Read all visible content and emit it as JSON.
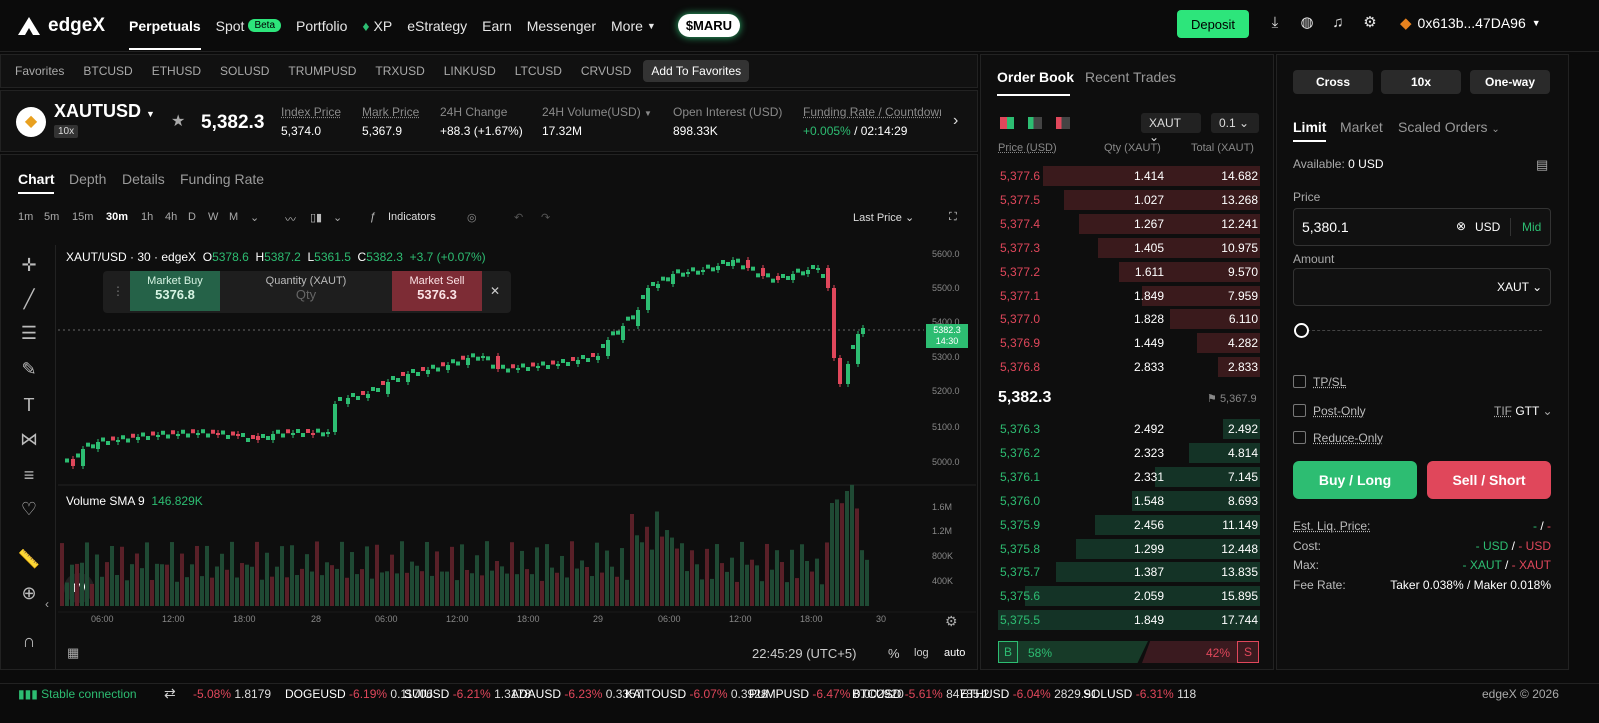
{
  "nav": {
    "brand": "edgeX",
    "items": [
      "Perpetuals",
      "Spot",
      "Portfolio",
      "XP",
      "eStrategy",
      "Earn",
      "Messenger",
      "More"
    ],
    "beta": "Beta",
    "promo": "$MARU",
    "deposit": "Deposit",
    "wallet": "0x613b...47DA96"
  },
  "favorites": {
    "label": "Favorites",
    "items": [
      "BTCUSD",
      "ETHUSD",
      "SOLUSD",
      "TRUMPUSD",
      "TRXUSD",
      "LINKUSD",
      "LTCUSD",
      "CRVUSD"
    ],
    "add": "Add To Favorites"
  },
  "ticker": {
    "symbol": "XAUTUSD",
    "leverage": "10x",
    "last": "5,382.3",
    "stats": [
      {
        "label": "Index Price",
        "value": "5,374.0"
      },
      {
        "label": "Mark Price",
        "value": "5,367.9"
      },
      {
        "label": "24H Change",
        "value": "+88.3 (+1.67%)"
      },
      {
        "label": "24H Volume(USD)",
        "value": "17.32M"
      },
      {
        "label": "Open Interest (USD)",
        "value": "898.33K"
      },
      {
        "label": "Funding Rate / Countdown",
        "value": "+0.005%",
        "value2": "/ 02:14:29"
      }
    ]
  },
  "chart": {
    "tabs": [
      "Chart",
      "Depth",
      "Details",
      "Funding Rate"
    ],
    "timeframes": [
      "1m",
      "5m",
      "15m",
      "30m",
      "1h",
      "4h",
      "D",
      "W",
      "M"
    ],
    "indicators": "Indicators",
    "price_mode": "Last Price",
    "legend_symbol": "XAUT/USD · 30 · edgeX",
    "ohlc": {
      "o": "5378.6",
      "h": "5387.2",
      "l": "5361.5",
      "c": "5382.3",
      "chg": "+3.7 (+0.07%)"
    },
    "market_buy": "Market Buy",
    "market_buy_price": "5376.8",
    "quantity_label": "Quantity (XAUT)",
    "qty_placeholder": "Qty",
    "market_sell": "Market Sell",
    "market_sell_price": "5376.3",
    "volume_label": "Volume SMA 9",
    "volume_value": "146.829K",
    "price_ticks": [
      "5600.0",
      "5500.0",
      "5400.0",
      "5300.0",
      "5200.0",
      "5100.0",
      "5000.0"
    ],
    "vol_ticks": [
      "1.6M",
      "1.2M",
      "800K",
      "400K"
    ],
    "time_ticks": [
      "06:00",
      "12:00",
      "18:00",
      "28",
      "06:00",
      "12:00",
      "18:00",
      "29",
      "06:00",
      "12:00",
      "18:00",
      "30"
    ],
    "price_tag": "5382.3",
    "price_tag_time": "14:30",
    "clock": "22:45:29 (UTC+5)",
    "pct": "%",
    "log": "log",
    "auto": "auto"
  },
  "orderbook": {
    "tabs": [
      "Order Book",
      "Recent Trades"
    ],
    "symbol_select": "XAUT",
    "tick_select": "0.1",
    "headers": [
      "Price (USD)",
      "Qty (XAUT)",
      "Total (XAUT)"
    ],
    "asks": [
      [
        "5,377.6",
        "1.414",
        "14.682"
      ],
      [
        "5,377.5",
        "1.027",
        "13.268"
      ],
      [
        "5,377.4",
        "1.267",
        "12.241"
      ],
      [
        "5,377.3",
        "1.405",
        "10.975"
      ],
      [
        "5,377.2",
        "1.611",
        "9.570"
      ],
      [
        "5,377.1",
        "1.849",
        "7.959"
      ],
      [
        "5,377.0",
        "1.828",
        "6.110"
      ],
      [
        "5,376.9",
        "1.449",
        "4.282"
      ],
      [
        "5,376.8",
        "2.833",
        "2.833"
      ]
    ],
    "mid_price": "5,382.3",
    "mark_price": "5,367.9",
    "bids": [
      [
        "5,376.3",
        "2.492",
        "2.492"
      ],
      [
        "5,376.2",
        "2.323",
        "4.814"
      ],
      [
        "5,376.1",
        "2.331",
        "7.145"
      ],
      [
        "5,376.0",
        "1.548",
        "8.693"
      ],
      [
        "5,375.9",
        "2.456",
        "11.149"
      ],
      [
        "5,375.8",
        "1.299",
        "12.448"
      ],
      [
        "5,375.7",
        "1.387",
        "13.835"
      ],
      [
        "5,375.6",
        "2.059",
        "15.895"
      ],
      [
        "5,375.5",
        "1.849",
        "17.744"
      ]
    ],
    "buy_badge": "B",
    "buy_pct": "58%",
    "sell_pct": "42%",
    "sell_badge": "S"
  },
  "trade": {
    "margin": "Cross",
    "leverage": "10x",
    "mode": "One-way",
    "tabs": [
      "Limit",
      "Market",
      "Scaled Orders"
    ],
    "available_label": "Available:",
    "available_value": "0 USD",
    "price_label": "Price",
    "price_value": "5,380.1",
    "price_unit": "USD",
    "mid": "Mid",
    "amount_label": "Amount",
    "amount_unit": "XAUT",
    "tpsl": "TP/SL",
    "post_only": "Post-Only",
    "tif_label": "TIF",
    "tif_value": "GTT",
    "reduce_only": "Reduce-Only",
    "buy": "Buy / Long",
    "sell": "Sell / Short",
    "info": [
      {
        "label": "Est. Liq. Price:",
        "a": "-",
        "sep": "/",
        "b": "-"
      },
      {
        "label": "Cost:",
        "a": "- USD",
        "sep": "/",
        "b": "- USD"
      },
      {
        "label": "Max:",
        "a": "- XAUT",
        "sep": "/",
        "b": "- XAUT"
      },
      {
        "label": "Fee Rate:",
        "value": "Taker 0.038% / Maker 0.018%"
      }
    ]
  },
  "status": {
    "connection": "Stable connection",
    "tickers": [
      {
        "sym": "",
        "chg": "-5.08%",
        "px": "1.8179"
      },
      {
        "sym": "DOGEUSD",
        "chg": "-6.19%",
        "px": "0.11706"
      },
      {
        "sym": "SUIUSD",
        "chg": "-6.21%",
        "px": "1.3178"
      },
      {
        "sym": "ADAUSD",
        "chg": "-6.23%",
        "px": "0.3357"
      },
      {
        "sym": "KAITOUSD",
        "chg": "-6.07%",
        "px": "0.3928"
      },
      {
        "sym": "PUMPUSD",
        "chg": "-6.47%",
        "px": "0.002920"
      },
      {
        "sym": "BTCUSD",
        "chg": "-5.61%",
        "px": "84785.2"
      },
      {
        "sym": "ETHUSD",
        "chg": "-6.04%",
        "px": "2829.91"
      },
      {
        "sym": "SOLUSD",
        "chg": "-6.31%",
        "px": "118"
      }
    ],
    "copyright": "edgeX © 2026"
  }
}
